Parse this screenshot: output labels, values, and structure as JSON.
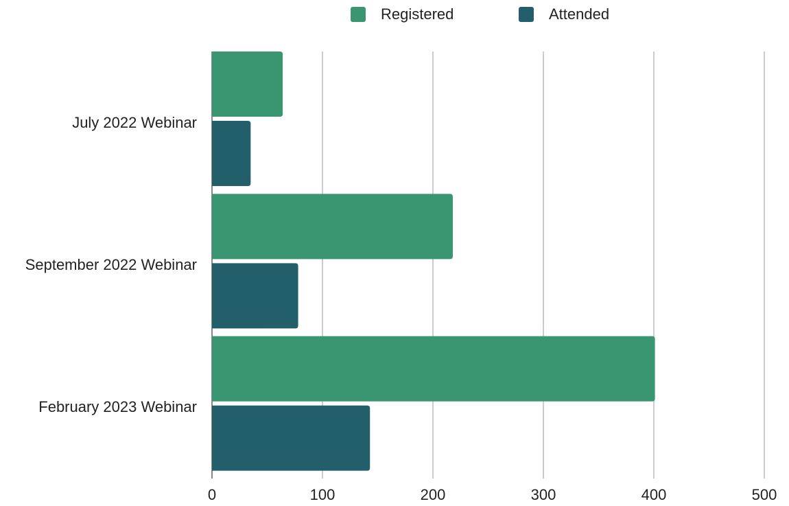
{
  "chart_data": {
    "type": "bar",
    "orientation": "horizontal",
    "title": "",
    "xlabel": "",
    "ylabel": "",
    "categories": [
      "July 2022 Webinar",
      "September 2022 Webinar",
      "February 2023 Webinar"
    ],
    "series": [
      {
        "name": "Registered",
        "color": "#3a9571",
        "values": [
          64,
          218,
          401
        ]
      },
      {
        "name": "Attended",
        "color": "#235f6b",
        "values": [
          35,
          78,
          143
        ]
      }
    ],
    "xlim": [
      0,
      500
    ],
    "x_ticks": [
      "0",
      "100",
      "200",
      "300",
      "400",
      "500"
    ],
    "grid": true,
    "legend_position": "top-center"
  }
}
